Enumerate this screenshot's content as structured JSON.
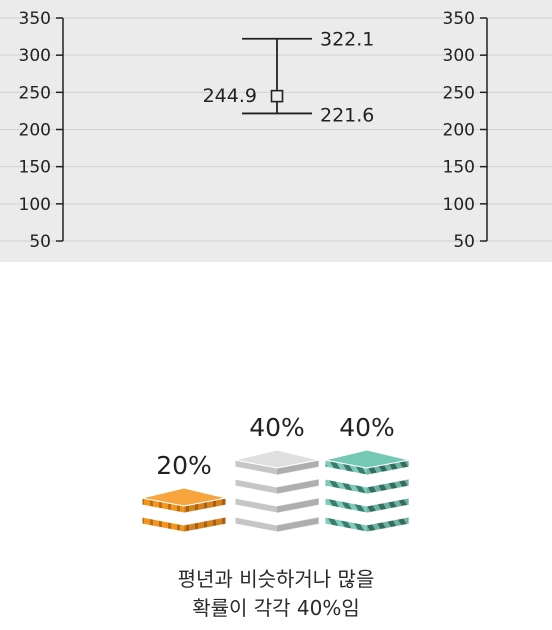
{
  "chart_data": {
    "type": "errorbar",
    "yticks": [
      50,
      100,
      150,
      200,
      250,
      300,
      350
    ],
    "ylim": [
      42,
      362
    ],
    "point": {
      "value": 244.9,
      "low": 221.6,
      "high": 322.1
    },
    "point_label": "244.9",
    "low_label": "221.6",
    "high_label": "322.1",
    "grid": true,
    "colors": {
      "panel": "#ebebeb",
      "grid": "#d2d2d2",
      "axis": "#222222",
      "text": "#222222"
    }
  },
  "probability": {
    "items": [
      {
        "label": "20%",
        "value": 20,
        "color": "#f7941d"
      },
      {
        "label": "40%",
        "value": 40,
        "color": "#d0d0d0"
      },
      {
        "label": "40%",
        "value": 40,
        "color": "#5cbfa8"
      }
    ]
  },
  "caption": {
    "line1": "평년과 비슷하거나 많을",
    "line2": "확률이 각각 40%임"
  }
}
